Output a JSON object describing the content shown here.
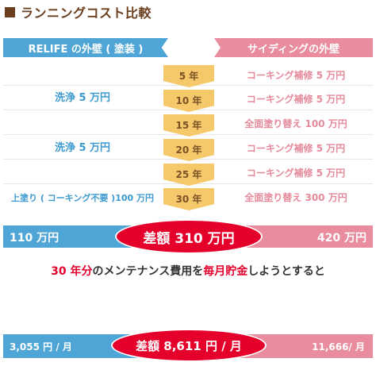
{
  "title": "ランニングコスト比較",
  "headers": {
    "left": "RELIFE の外壁 ( 塗装 )",
    "right": "サイディングの外壁"
  },
  "rows": [
    {
      "year": "5 年",
      "left": "",
      "right": "コーキング補修 5 万円"
    },
    {
      "year": "10 年",
      "left": "洗浄 5 万円",
      "right": "コーキング補修 5 万円"
    },
    {
      "year": "15 年",
      "left": "",
      "right": "全面塗り替え 100 万円"
    },
    {
      "year": "20 年",
      "left": "洗浄 5 万円",
      "right": "コーキング補修 5 万円"
    },
    {
      "year": "25 年",
      "left": "",
      "right": "コーキング補修 5 万円"
    },
    {
      "year": "30 年",
      "left": "上塗り ( コーキング不要 )100 万円",
      "right": "全面塗り替え 300 万円"
    }
  ],
  "total": {
    "left": "110 万円",
    "diff": "差額 310 万円",
    "right": "420 万円"
  },
  "note": {
    "part1": "30 年分",
    "part2": "のメンテナンス費用を",
    "part3": "毎月貯金",
    "part4": "しようとすると"
  },
  "monthly": {
    "left": "3,055 円 / 月",
    "diff": "差額 8,611 円 / 月",
    "right": "11,666/ 月"
  },
  "colors": {
    "relife": "#4fa6d6",
    "siding": "#e98d9e",
    "year_arrow": "#f5c96a",
    "diff": "#e4002b",
    "title": "#6b3e1e"
  },
  "chart_data": {
    "type": "table",
    "title": "ランニングコスト比較",
    "columns": [
      "RELIFE の外壁 ( 塗装 )",
      "年",
      "サイディングの外壁"
    ],
    "rows": [
      [
        "",
        "5 年",
        "コーキング補修 5 万円"
      ],
      [
        "洗浄 5 万円",
        "10 年",
        "コーキング補修 5 万円"
      ],
      [
        "",
        "15 年",
        "全面塗り替え 100 万円"
      ],
      [
        "洗浄 5 万円",
        "20 年",
        "コーキング補修 5 万円"
      ],
      [
        "",
        "25 年",
        "コーキング補修 5 万円"
      ],
      [
        "上塗り ( コーキング不要 )100 万円",
        "30 年",
        "全面塗り替え 300 万円"
      ]
    ],
    "totals": {
      "relife": 110,
      "siding": 420,
      "difference": 310,
      "unit": "万円"
    },
    "monthly": {
      "relife": 3055,
      "siding": 11666,
      "difference": 8611,
      "unit": "円 / 月"
    }
  }
}
